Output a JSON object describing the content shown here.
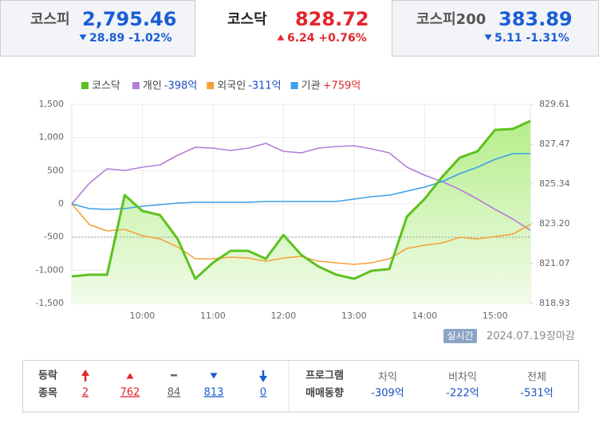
{
  "tabs": [
    {
      "name": "코스피",
      "value": "2,795.46",
      "direction": "down",
      "change": "28.89 -1.02%"
    },
    {
      "name": "코스닥",
      "value": "828.72",
      "direction": "up",
      "change": "6.24 +0.76%"
    },
    {
      "name": "코스피200",
      "value": "383.89",
      "direction": "down",
      "change": "5.11 -1.31%"
    }
  ],
  "chart_data": {
    "type": "line",
    "x": [
      "09:00",
      "09:15",
      "09:30",
      "09:45",
      "10:00",
      "10:15",
      "10:30",
      "10:45",
      "11:00",
      "11:15",
      "11:30",
      "11:45",
      "12:00",
      "12:15",
      "12:30",
      "12:45",
      "13:00",
      "13:15",
      "13:30",
      "13:45",
      "14:00",
      "14:15",
      "14:30",
      "14:45",
      "15:00",
      "15:15",
      "15:30"
    ],
    "xlim": [
      "09:00",
      "15:30"
    ],
    "xticks": [
      "10:00",
      "11:00",
      "12:00",
      "13:00",
      "14:00",
      "15:00"
    ],
    "ylim": [
      -1500,
      1500
    ],
    "yticks": [
      {
        "value": 1500,
        "label": "1,500"
      },
      {
        "value": 1000,
        "label": "1,000"
      },
      500,
      0,
      -500,
      {
        "value": -1000,
        "label": "-1,000"
      },
      {
        "value": -1500,
        "label": "-1,500"
      }
    ],
    "y2lim": [
      818.93,
      829.61
    ],
    "y2ticks": [
      829.61,
      827.47,
      825.34,
      {
        "value": 823.2,
        "label": "823.20"
      },
      821.07,
      818.93
    ],
    "reference_line": {
      "axis": "y2",
      "value": 822.48
    },
    "grid": true,
    "series": [
      {
        "name": "코스닥",
        "color": "#5cc21f",
        "axis": "y2",
        "fill": true,
        "values": [
          820.38,
          820.47,
          820.47,
          824.74,
          823.89,
          823.67,
          822.39,
          820.25,
          821.11,
          821.75,
          821.75,
          821.32,
          822.6,
          821.54,
          820.9,
          820.47,
          820.25,
          820.68,
          820.77,
          823.59,
          824.53,
          825.72,
          826.75,
          827.09,
          828.24,
          828.29,
          828.72
        ]
      },
      {
        "name": "개인",
        "color": "#b27ed8",
        "legend_label": "-398억",
        "legend_label_color": "#1a4fc2",
        "values": [
          0,
          312,
          528,
          504,
          552,
          588,
          732,
          852,
          840,
          804,
          840,
          912,
          792,
          768,
          840,
          864,
          876,
          828,
          768,
          552,
          432,
          336,
          216,
          72,
          -84,
          -228,
          -398
        ]
      },
      {
        "name": "외국인",
        "color": "#f5a03c",
        "legend_label": "-311억",
        "legend_label_color": "#1a4fc2",
        "values": [
          0,
          -312,
          -408,
          -384,
          -480,
          -528,
          -648,
          -828,
          -828,
          -804,
          -816,
          -864,
          -816,
          -792,
          -864,
          -888,
          -912,
          -888,
          -828,
          -672,
          -624,
          -588,
          -504,
          -528,
          -492,
          -456,
          -311
        ]
      },
      {
        "name": "기관",
        "color": "#3aa0ea",
        "legend_label": "+759억",
        "legend_label_color": "#e2262b",
        "values": [
          0,
          -72,
          -84,
          -72,
          -36,
          -12,
          12,
          24,
          24,
          24,
          24,
          36,
          36,
          36,
          36,
          36,
          72,
          108,
          132,
          192,
          252,
          336,
          456,
          552,
          672,
          756,
          759
        ]
      }
    ]
  },
  "status": {
    "badge": "실시간",
    "date": "2024.07.19",
    "state": "장마감"
  },
  "breadth": {
    "title": [
      "등락",
      "종목"
    ],
    "items": [
      {
        "kind": "upper-limit",
        "count": 2
      },
      {
        "kind": "up",
        "count": 762
      },
      {
        "kind": "flat",
        "count": 84
      },
      {
        "kind": "down",
        "count": 813
      },
      {
        "kind": "lower-limit",
        "count": 0
      }
    ]
  },
  "program": {
    "title": [
      "프로그램",
      "매매동향"
    ],
    "items": [
      {
        "label": "차익",
        "value": "-309억"
      },
      {
        "label": "비차익",
        "value": "-222억"
      },
      {
        "label": "전체",
        "value": "-531억"
      }
    ]
  }
}
